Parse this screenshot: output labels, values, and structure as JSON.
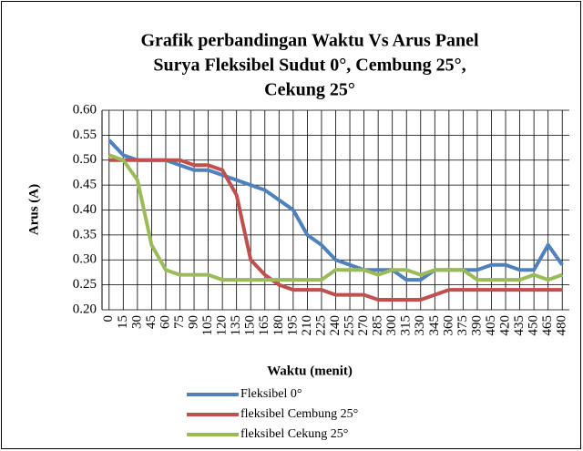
{
  "chart_data": {
    "type": "line",
    "title": [
      "Grafik perbandingan Waktu Vs Arus Panel",
      "Surya Fleksibel Sudut 0°, Cembung 25°,",
      "Cekung 25°"
    ],
    "x_label": "Waktu (menit)",
    "y_label": "Arus (A)",
    "categories": [
      "0",
      "15",
      "30",
      "45",
      "60",
      "75",
      "90",
      "105",
      "120",
      "135",
      "150",
      "165",
      "180",
      "195",
      "210",
      "225",
      "240",
      "255",
      "270",
      "285",
      "300",
      "315",
      "330",
      "345",
      "360",
      "375",
      "390",
      "405",
      "420",
      "435",
      "450",
      "465",
      "480"
    ],
    "series": [
      {
        "name": "Fleksibel 0°",
        "color": "#4f81bd",
        "values": [
          0.54,
          0.51,
          0.5,
          0.5,
          0.5,
          0.49,
          0.48,
          0.48,
          0.47,
          0.46,
          0.45,
          0.44,
          0.42,
          0.4,
          0.35,
          0.33,
          0.3,
          0.29,
          0.28,
          0.28,
          0.28,
          0.26,
          0.26,
          0.28,
          0.28,
          0.28,
          0.28,
          0.29,
          0.29,
          0.28,
          0.28,
          0.33,
          0.29
        ]
      },
      {
        "name": "fleksibel Cembung 25°",
        "color": "#c0504d",
        "values": [
          0.5,
          0.5,
          0.5,
          0.5,
          0.5,
          0.5,
          0.49,
          0.49,
          0.48,
          0.43,
          0.3,
          0.27,
          0.25,
          0.24,
          0.24,
          0.24,
          0.23,
          0.23,
          0.23,
          0.22,
          0.22,
          0.22,
          0.22,
          0.23,
          0.24,
          0.24,
          0.24,
          0.24,
          0.24,
          0.24,
          0.24,
          0.24,
          0.24
        ]
      },
      {
        "name": "fleksibel Cekung 25°",
        "color": "#9bbb59",
        "values": [
          0.51,
          0.5,
          0.46,
          0.33,
          0.28,
          0.27,
          0.27,
          0.27,
          0.26,
          0.26,
          0.26,
          0.26,
          0.26,
          0.26,
          0.26,
          0.26,
          0.28,
          0.28,
          0.28,
          0.27,
          0.28,
          0.28,
          0.27,
          0.28,
          0.28,
          0.28,
          0.26,
          0.26,
          0.26,
          0.26,
          0.27,
          0.26,
          0.27
        ]
      }
    ],
    "ylim": [
      0.2,
      0.6
    ],
    "yticks": [
      {
        "value": 0.2,
        "label": "0.20"
      },
      {
        "value": 0.25,
        "label": "0.25"
      },
      {
        "value": 0.3,
        "label": "0.30"
      },
      {
        "value": 0.35,
        "label": "0.35"
      },
      {
        "value": 0.4,
        "label": "0.40"
      },
      {
        "value": 0.45,
        "label": "0.45"
      },
      {
        "value": 0.5,
        "label": "0.50"
      },
      {
        "value": 0.55,
        "label": "0.55"
      },
      {
        "value": 0.6,
        "label": "0.60"
      }
    ],
    "grid": true,
    "legend": "bottom"
  }
}
